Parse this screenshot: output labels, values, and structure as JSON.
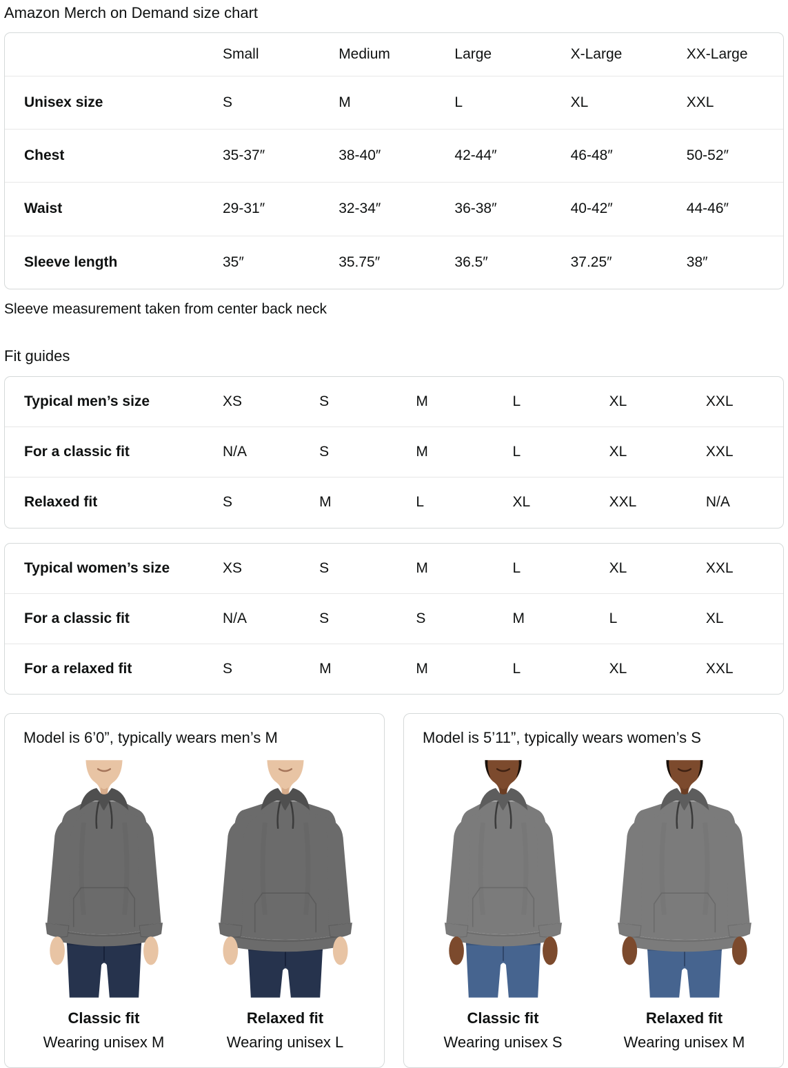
{
  "page": {
    "title": "Amazon Merch on Demand size chart",
    "note": "Sleeve measurement taken from center back neck",
    "fit_guides_heading": "Fit guides"
  },
  "colors": {
    "text": "#0F1111",
    "table_border": "#D5D9D9",
    "row_divider": "#E7E7E7"
  },
  "size_table": {
    "columns": [
      "Small",
      "Medium",
      "Large",
      "X-Large",
      "XX-Large"
    ],
    "rows": [
      {
        "label": "Unisex size",
        "values": [
          "S",
          "M",
          "L",
          "XL",
          "XXL"
        ]
      },
      {
        "label": "Chest",
        "values": [
          "35-37″",
          "38-40″",
          "42-44″",
          "46-48″",
          "50-52″"
        ]
      },
      {
        "label": "Waist",
        "values": [
          "29-31″",
          "32-34″",
          "36-38″",
          "40-42″",
          "44-46″"
        ]
      },
      {
        "label": "Sleeve length",
        "values": [
          "35″",
          "35.75″",
          "36.5″",
          "37.25″",
          "38″"
        ]
      }
    ]
  },
  "fit_tables": [
    {
      "rows": [
        {
          "label": "Typical men’s size",
          "values": [
            "XS",
            "S",
            "M",
            "L",
            "XL",
            "XXL"
          ]
        },
        {
          "label": "For a classic fit",
          "values": [
            "N/A",
            "S",
            "M",
            "L",
            "XL",
            "XXL"
          ]
        },
        {
          "label": "Relaxed fit",
          "values": [
            "S",
            "M",
            "L",
            "XL",
            "XXL",
            "N/A"
          ]
        }
      ]
    },
    {
      "rows": [
        {
          "label": "Typical women’s size",
          "values": [
            "XS",
            "S",
            "M",
            "L",
            "XL",
            "XXL"
          ]
        },
        {
          "label": "For a classic fit",
          "values": [
            "N/A",
            "S",
            "S",
            "M",
            "L",
            "XL"
          ]
        },
        {
          "label": "For a relaxed fit",
          "values": [
            "S",
            "M",
            "M",
            "L",
            "XL",
            "XXL"
          ]
        }
      ]
    }
  ],
  "model_cards": [
    {
      "title": "Model is 6’0”, typically wears men’s M",
      "figures": [
        {
          "fit_label": "Classic fit",
          "wearing": "Wearing unisex M",
          "figure_type": "male",
          "fit_type": "classic"
        },
        {
          "fit_label": "Relaxed fit",
          "wearing": "Wearing unisex L",
          "figure_type": "male",
          "fit_type": "relaxed"
        }
      ]
    },
    {
      "title": "Model is 5’11”, typically wears women’s S",
      "figures": [
        {
          "fit_label": "Classic fit",
          "wearing": "Wearing unisex S",
          "figure_type": "female",
          "fit_type": "classic"
        },
        {
          "fit_label": "Relaxed fit",
          "wearing": "Wearing unisex M",
          "figure_type": "female",
          "fit_type": "relaxed"
        }
      ]
    }
  ],
  "figure_styles": {
    "male": {
      "skin": "#e8c4a4",
      "skin_shadow": "#c0906c",
      "mouth": "#a5755a",
      "hair": "",
      "hoodie": "#6b6b6b",
      "hoodie_dark": "#4f4f4f",
      "jeans": "#26334d",
      "jeans_dark": "#18233a"
    },
    "female": {
      "skin": "#7c4a2d",
      "skin_shadow": "#57301a",
      "mouth": "#3f2112",
      "hair": "#17100b",
      "hoodie": "#7b7b7b",
      "hoodie_dark": "#5d5d5d",
      "jeans": "#46648f",
      "jeans_dark": "#30466a"
    }
  },
  "figure_fits": {
    "classic": {
      "w": 2,
      "hemDrop": 0
    },
    "relaxed": {
      "w": 14,
      "hemDrop": 8
    }
  }
}
